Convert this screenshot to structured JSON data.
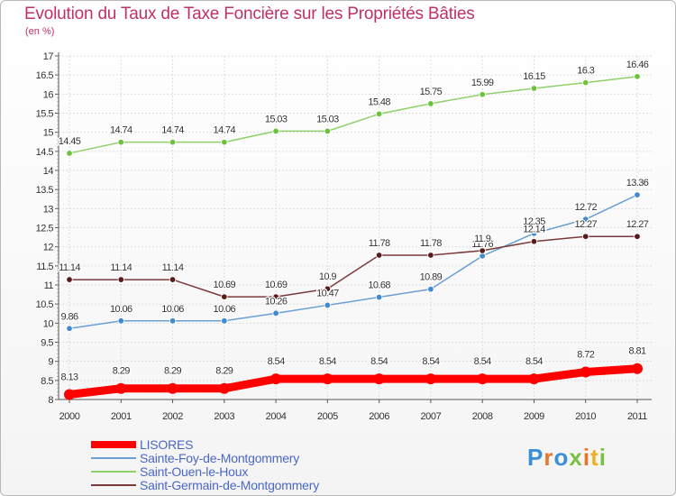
{
  "chart_data": {
    "type": "line",
    "title": "Evolution du Taux de Taxe Foncière sur les Propriétés Bâties",
    "subtitle": "(en %)",
    "x": [
      "2000",
      "2001",
      "2002",
      "2003",
      "2004",
      "2005",
      "2006",
      "2007",
      "2008",
      "2009",
      "2010",
      "2011"
    ],
    "ylim": [
      8,
      17
    ],
    "yticks": [
      "8",
      "8.5",
      "9",
      "9.5",
      "10",
      "10.5",
      "11",
      "11.5",
      "12",
      "12.5",
      "13",
      "13.5",
      "14",
      "14.5",
      "15",
      "15.5",
      "16",
      "16.5",
      "17"
    ],
    "grid": true,
    "legend_position": "bottom-left",
    "series": [
      {
        "name": "LISORES",
        "color": "#ff0000",
        "emphasis": true,
        "values": [
          8.13,
          8.29,
          8.29,
          8.29,
          8.54,
          8.54,
          8.54,
          8.54,
          8.54,
          8.54,
          8.72,
          8.81
        ],
        "labels": [
          "8.13",
          "8.29",
          "8.29",
          "8.29",
          "8.54",
          "8.54",
          "8.54",
          "8.54",
          "8.54",
          "8.54",
          "8.72",
          "8.81"
        ]
      },
      {
        "name": "Sainte-Foy-de-Montgommery",
        "color": "#6b9fd4",
        "marker": "#3f8ad0",
        "values": [
          9.86,
          10.06,
          10.06,
          10.06,
          10.26,
          10.47,
          10.68,
          10.89,
          11.76,
          12.35,
          12.72,
          13.36
        ],
        "labels": [
          "9.86",
          "10.06",
          "10.06",
          "10.06",
          "10.26",
          "10.47",
          "10.68",
          "10.89",
          "11.76",
          "12.35",
          "12.72",
          "13.36"
        ]
      },
      {
        "name": "Saint-Ouen-le-Houx",
        "color": "#8fd16a",
        "marker": "#6cc23a",
        "values": [
          14.45,
          14.74,
          14.74,
          14.74,
          15.03,
          15.03,
          15.48,
          15.75,
          15.99,
          16.15,
          16.3,
          16.46
        ],
        "labels": [
          "14.45",
          "14.74",
          "14.74",
          "14.74",
          "15.03",
          "15.03",
          "15.48",
          "15.75",
          "15.99",
          "16.15",
          "16.3",
          "16.46"
        ]
      },
      {
        "name": "Saint-Germain-de-Montgommery",
        "color": "#7a3a3a",
        "marker": "#5a1a1a",
        "values": [
          11.14,
          11.14,
          11.14,
          10.69,
          10.69,
          10.9,
          11.78,
          11.78,
          11.9,
          12.14,
          12.27,
          12.27
        ],
        "labels": [
          "11.14",
          "11.14",
          "11.14",
          "10.69",
          "10.69",
          "10.9",
          "11.78",
          "11.78",
          "11.9",
          "12.14",
          "12.27",
          "12.27"
        ]
      }
    ]
  },
  "logo": {
    "text": "Proxiti"
  }
}
